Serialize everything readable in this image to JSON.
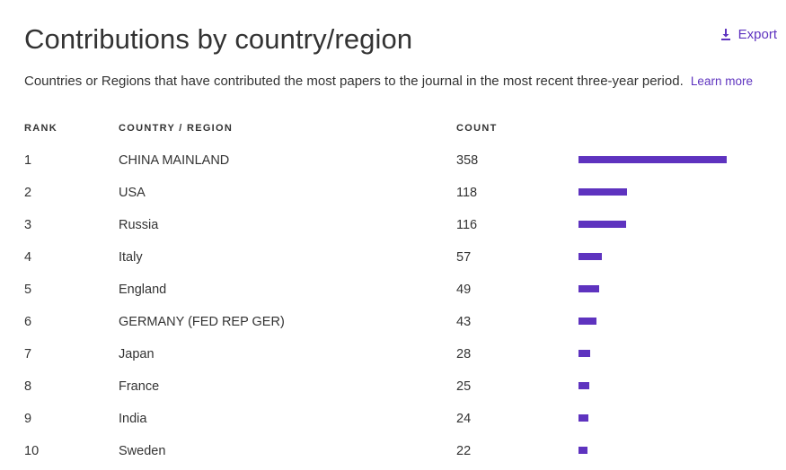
{
  "header": {
    "title": "Contributions by country/region",
    "export_label": "Export",
    "subtitle": "Countries or Regions that have contributed the most papers to the journal in the most recent three-year period.",
    "learn_more_label": "Learn more"
  },
  "table": {
    "columns": {
      "rank": "RANK",
      "country": "COUNTRY / REGION",
      "count": "COUNT"
    },
    "max_count": 358,
    "rows": [
      {
        "rank": "1",
        "country": "CHINA MAINLAND",
        "count": "358",
        "value": 358
      },
      {
        "rank": "2",
        "country": "USA",
        "count": "118",
        "value": 118
      },
      {
        "rank": "3",
        "country": "Russia",
        "count": "116",
        "value": 116
      },
      {
        "rank": "4",
        "country": "Italy",
        "count": "57",
        "value": 57
      },
      {
        "rank": "5",
        "country": "England",
        "count": "49",
        "value": 49
      },
      {
        "rank": "6",
        "country": "GERMANY (FED REP GER)",
        "count": "43",
        "value": 43
      },
      {
        "rank": "7",
        "country": "Japan",
        "count": "28",
        "value": 28
      },
      {
        "rank": "8",
        "country": "France",
        "count": "25",
        "value": 25
      },
      {
        "rank": "9",
        "country": "India",
        "count": "24",
        "value": 24
      },
      {
        "rank": "10",
        "country": "Sweden",
        "count": "22",
        "value": 22
      }
    ]
  },
  "colors": {
    "accent": "#5e33bf",
    "text": "#333333",
    "background": "#ffffff"
  },
  "icons": {
    "export": "download-icon"
  }
}
